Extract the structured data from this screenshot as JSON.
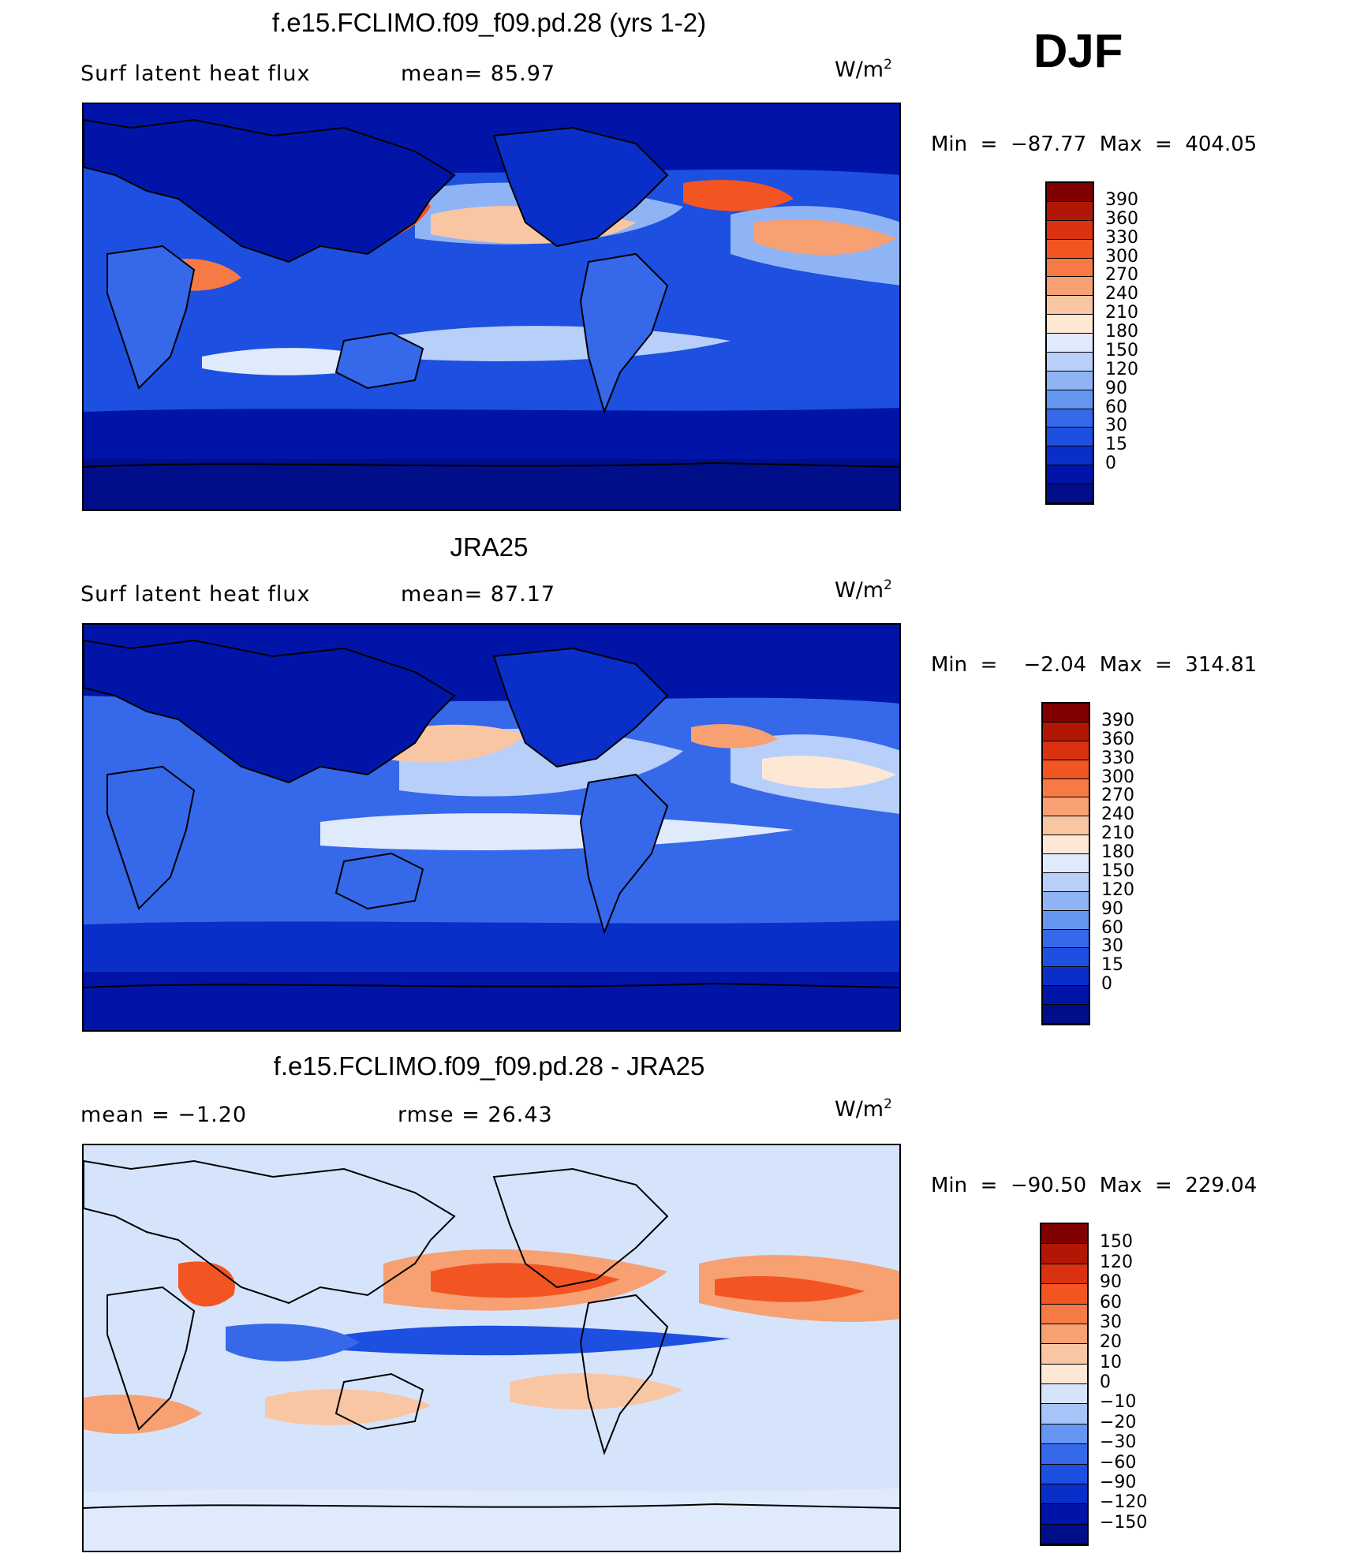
{
  "season": "DJF",
  "colors": {
    "abs": [
      "#000e8a",
      "#0015a8",
      "#0a2fc8",
      "#1d4fe0",
      "#3668ea",
      "#6496f2",
      "#8fb4f6",
      "#b7cff9",
      "#dfeafd",
      "#fde7d5",
      "#f9c6a4",
      "#f7a072",
      "#f57a45",
      "#f25522",
      "#da3210",
      "#b21706",
      "#800000"
    ],
    "diff": [
      "#000e8a",
      "#0015a8",
      "#0a2fc8",
      "#1d4fe0",
      "#3668ea",
      "#6496f2",
      "#a7c4f8",
      "#d6e4fb",
      "#fde7d5",
      "#f9c6a4",
      "#f7a072",
      "#f57a45",
      "#f25522",
      "#da3210",
      "#b21706",
      "#800000"
    ]
  },
  "panels": [
    {
      "title": "f.e15.FCLIMO.f09_f09.pd.28 (yrs 1-2)",
      "left_text": "Surf  latent  heat  flux",
      "right_text": "mean=   85.97",
      "units": "W/m",
      "units_sup": "2",
      "minmax": "Min  =  −87.77  Max  =  404.05",
      "legend_kind": "abs",
      "legend_labels": [
        "390",
        "360",
        "330",
        "300",
        "270",
        "240",
        "210",
        "180",
        "150",
        "120",
        "90",
        "60",
        "30",
        "15",
        "0"
      ]
    },
    {
      "title": "JRA25",
      "left_text": "Surf  latent  heat  flux",
      "right_text": "mean=   87.17",
      "units": "W/m",
      "units_sup": "2",
      "minmax": "Min  =    −2.04  Max  =  314.81",
      "legend_kind": "abs",
      "legend_labels": [
        "390",
        "360",
        "330",
        "300",
        "270",
        "240",
        "210",
        "180",
        "150",
        "120",
        "90",
        "60",
        "30",
        "15",
        "0"
      ]
    },
    {
      "title": "f.e15.FCLIMO.f09_f09.pd.28 - JRA25",
      "left_text": "mean  =    −1.20",
      "right_text": "rmse  =    26.43",
      "units": "W/m",
      "units_sup": "2",
      "minmax": "Min  =  −90.50  Max  =  229.04",
      "legend_kind": "diff",
      "legend_labels": [
        "150",
        "120",
        "90",
        "60",
        "30",
        "20",
        "10",
        "0",
        "−10",
        "−20",
        "−30",
        "−60",
        "−90",
        "−120",
        "−150"
      ]
    }
  ]
}
